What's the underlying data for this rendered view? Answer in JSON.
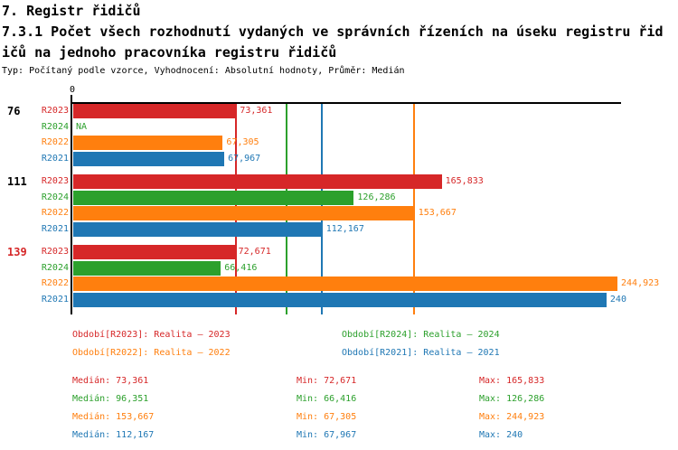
{
  "header": {
    "title": "7. Registr řidičů",
    "subtitle_line1": "7.3.1 Počet všech rozhodnutí vydaných ve správních řízeních na úseku registru řid",
    "subtitle_line2": "ičů na jednoho pracovníka registru řidičů",
    "meta": "Typ: Počítaný podle vzorce, Vyhodnocení: Absolutní hodnoty, Průměr: Medián"
  },
  "colors": {
    "R2023": "#d62728",
    "R2024": "#2ca02c",
    "R2022": "#ff7f0e",
    "R2021": "#1f77b4",
    "axis": "#000000",
    "highlight_group": "#d62728"
  },
  "axis": {
    "zero_label": "0",
    "xlim": [
      0,
      247
    ]
  },
  "chart_data": {
    "type": "bar",
    "orientation": "horizontal",
    "title": "7.3.1 Počet všech rozhodnutí vydaných ve správních řízeních na úseku registru řidičů na jednoho pracovníka registru řidičů",
    "xlabel": "",
    "ylabel": "",
    "xlim": [
      0,
      247
    ],
    "grid": "median-lines-only",
    "value_format": "decimal comma (cs-CZ)",
    "categories": [
      "76",
      "111",
      "139"
    ],
    "groups": [
      {
        "id": "76",
        "id_color": "#000000",
        "rows": [
          {
            "series": "R2023",
            "value": 73.361,
            "label": "73,361"
          },
          {
            "series": "R2024",
            "value": null,
            "label": "NA"
          },
          {
            "series": "R2022",
            "value": 67.305,
            "label": "67,305"
          },
          {
            "series": "R2021",
            "value": 67.967,
            "label": "67,967"
          }
        ]
      },
      {
        "id": "111",
        "id_color": "#000000",
        "rows": [
          {
            "series": "R2023",
            "value": 165.833,
            "label": "165,833"
          },
          {
            "series": "R2024",
            "value": 126.286,
            "label": "126,286"
          },
          {
            "series": "R2022",
            "value": 153.667,
            "label": "153,667"
          },
          {
            "series": "R2021",
            "value": 112.167,
            "label": "112,167"
          }
        ]
      },
      {
        "id": "139",
        "id_color": "#d62728",
        "rows": [
          {
            "series": "R2023",
            "value": 72.671,
            "label": "72,671"
          },
          {
            "series": "R2024",
            "value": 66.416,
            "label": "66,416"
          },
          {
            "series": "R2022",
            "value": 244.923,
            "label": "244,923"
          },
          {
            "series": "R2021",
            "value": 240,
            "label": "240"
          }
        ]
      }
    ],
    "medians": [
      {
        "series": "R2023",
        "value": 73.361
      },
      {
        "series": "R2024",
        "value": 96.351
      },
      {
        "series": "R2021",
        "value": 112.167
      },
      {
        "series": "R2022",
        "value": 153.667
      }
    ],
    "legend": [
      {
        "series": "R2023",
        "label": "Období[R2023]: Realita – 2023"
      },
      {
        "series": "R2024",
        "label": "Období[R2024]: Realita – 2024"
      },
      {
        "series": "R2022",
        "label": "Období[R2022]: Realita – 2022"
      },
      {
        "series": "R2021",
        "label": "Období[R2021]: Realita – 2021"
      }
    ],
    "stats": [
      {
        "series": "R2023",
        "median": "Medián: 73,361",
        "min": "Min: 72,671",
        "max": "Max: 165,833"
      },
      {
        "series": "R2024",
        "median": "Medián: 96,351",
        "min": "Min: 66,416",
        "max": "Max: 126,286"
      },
      {
        "series": "R2022",
        "median": "Medián: 153,667",
        "min": "Min: 67,305",
        "max": "Max: 244,923"
      },
      {
        "series": "R2021",
        "median": "Medián: 112,167",
        "min": "Min: 67,967",
        "max": "Max: 240"
      }
    ]
  }
}
